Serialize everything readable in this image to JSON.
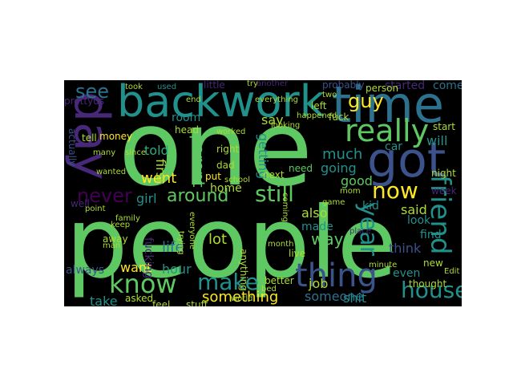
{
  "cloud": {
    "background": "#000000",
    "palette": [
      "#5ec962",
      "#3b528b",
      "#21918c",
      "#2c728e",
      "#440154",
      "#fde725",
      "#27ad81",
      "#482878",
      "#addc30"
    ],
    "words": {
      "one": "one",
      "people": "people",
      "time": "time",
      "backwork": "backwork",
      "day": "day",
      "got": "got",
      "know": "know",
      "thing": "thing",
      "really": "really",
      "friend": "friend",
      "make": "make",
      "around": "around",
      "still": "still",
      "house": "house",
      "now": "now",
      "year": "year",
      "never": "never",
      "see": "see",
      "guy": "guy",
      "want": "want",
      "something": "something",
      "parent": "parent",
      "told": "told",
      "went": "went",
      "good": "good",
      "much": "much",
      "going": "going",
      "getting": "getting",
      "say": "say",
      "life": "life",
      "lot": "lot",
      "way": "way",
      "think": "think",
      "also": "also",
      "take": "take",
      "home": "home",
      "car": "car",
      "made": "made",
      "even": "even",
      "job": "job",
      "said": "said",
      "will": "will",
      "start": "start",
      "started": "started",
      "come": "come",
      "night": "night",
      "hour": "hour",
      "girl": "girl",
      "kid": "kid",
      "always": "always",
      "first": "first",
      "room": "room",
      "shit": "shit",
      "someone": "someone",
      "look": "look",
      "find": "find",
      "money": "money",
      "dad": "dad",
      "actually": "actually",
      "well": "well",
      "put": "put",
      "week": "week",
      "anything": "anything",
      "fucking": "fucking",
      "need": "need",
      "little": "little",
      "prettyus": "prettyus",
      "probably": "probably",
      "left": "left",
      "tell": "tell",
      "head": "head",
      "right": "right",
      "took": "took",
      "used": "used",
      "many": "many",
      "since": "since",
      "keep": "keep",
      "away": "away",
      "family": "family",
      "person": "person",
      "another": "another",
      "fuck": "fuck",
      "looking": "looking",
      "everything": "everything",
      "worked": "worked",
      "school": "school",
      "game": "game",
      "place": "place",
      "thought": "thought",
      "Edit": "Edit",
      "new": "new",
      "minute": "minute",
      "month": "month",
      "live": "live",
      "better": "better",
      "stuff": "stuff",
      "feel": "feel",
      "asked": "asked",
      "man": "man",
      "everyone": "everyone",
      "world": "world",
      "bed": "bed",
      "end": "end",
      "two": "two",
      "try": "try",
      "wanted": "wanted",
      "point": "point",
      "happened": "happened",
      "mom": "mom",
      "next": "next",
      "trying": "trying",
      "coming": "coming"
    }
  }
}
